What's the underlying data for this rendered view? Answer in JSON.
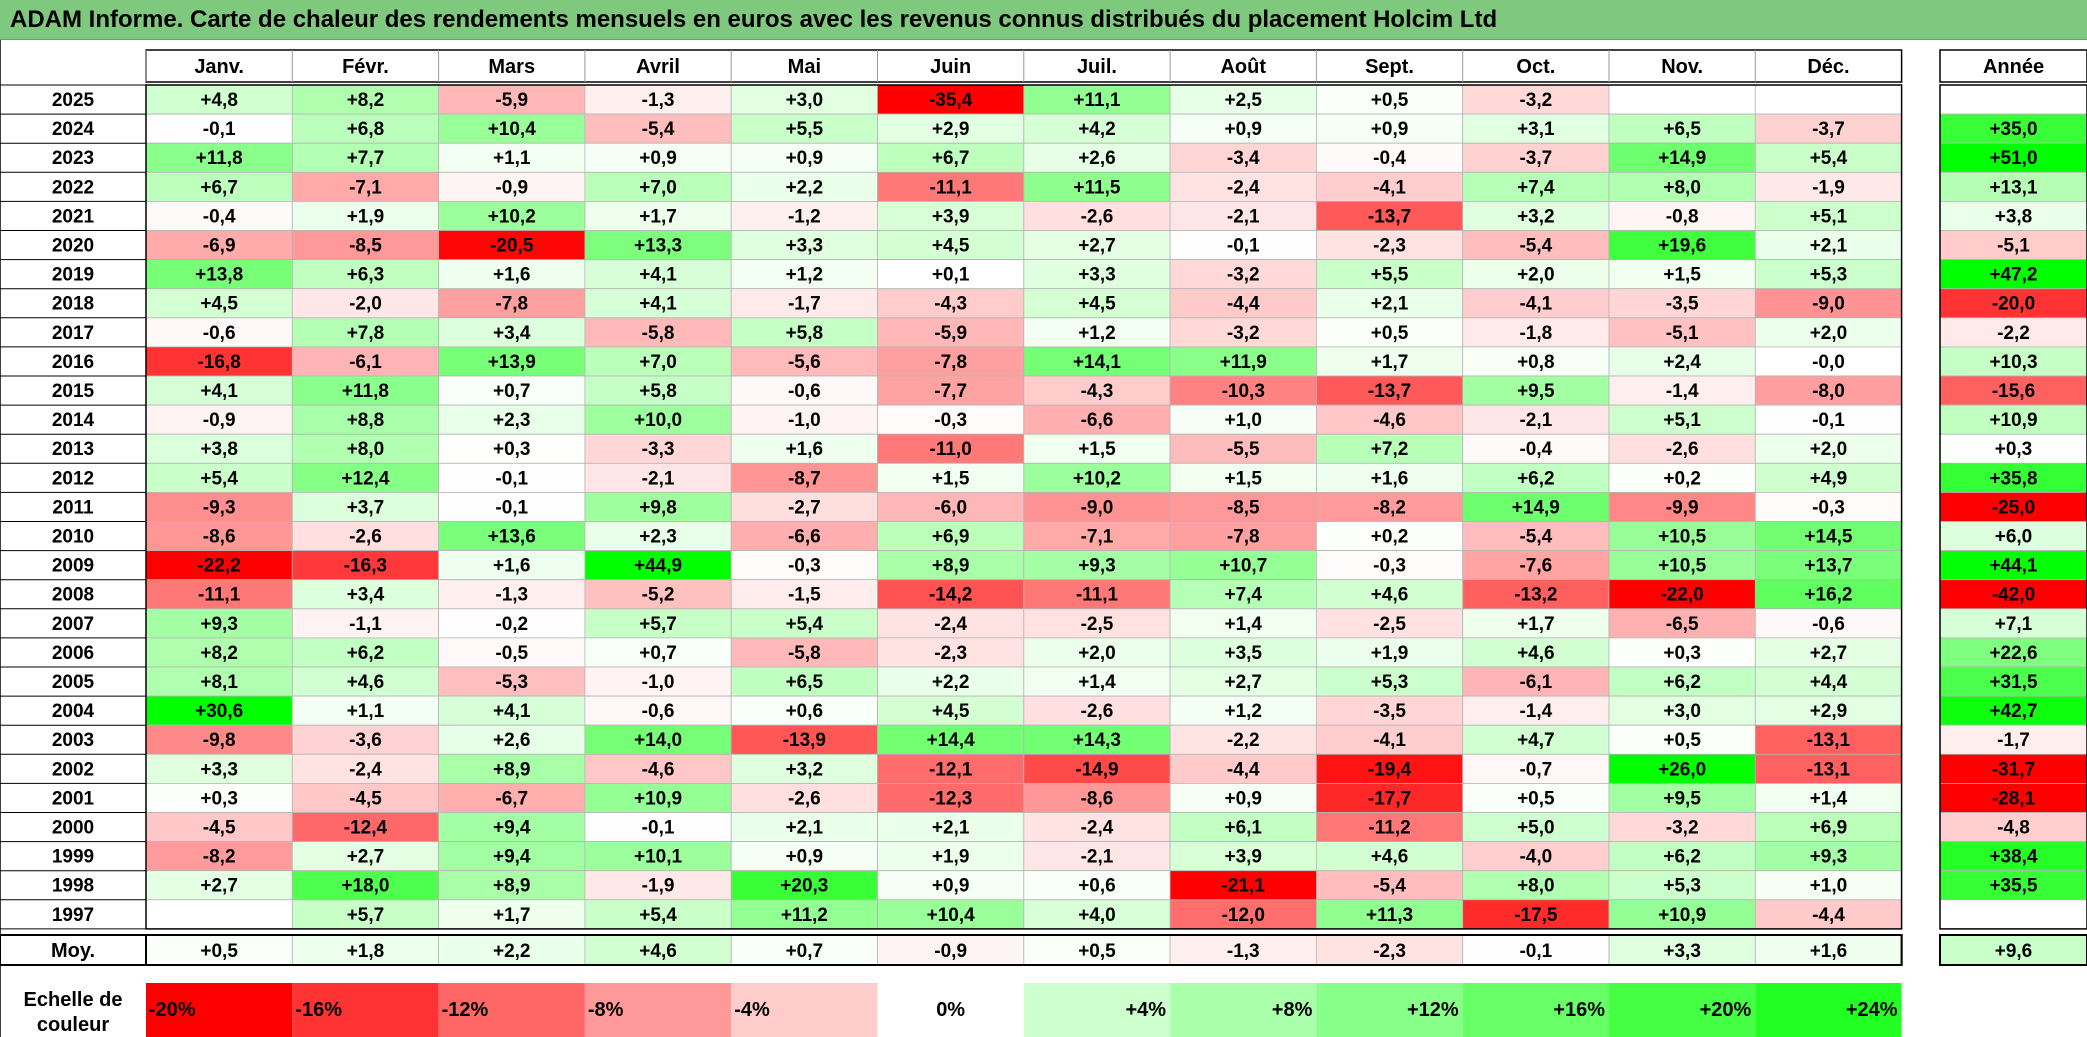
{
  "title": "ADAM Informe. Carte de chaleur des rendements mensuels en euros avec les revenus connus distribués du placement Holcim Ltd",
  "chart_data": {
    "type": "heatmap",
    "title": "ADAM Informe. Carte de chaleur des rendements mensuels en euros avec les revenus connus distribués du placement Holcim Ltd",
    "columns": [
      "Janv.",
      "Févr.",
      "Mars",
      "Avril",
      "Mai",
      "Juin",
      "Juil.",
      "Août",
      "Sept.",
      "Oct.",
      "Nov.",
      "Déc."
    ],
    "year_column_label": "Année",
    "rows": [
      {
        "year": "2025",
        "values": [
          "+4,8",
          "+8,2",
          "-5,9",
          "-1,3",
          "+3,0",
          "-35,4",
          "+11,1",
          "+2,5",
          "+0,5",
          "-3,2",
          "",
          ""
        ],
        "annual": ""
      },
      {
        "year": "2024",
        "values": [
          "-0,1",
          "+6,8",
          "+10,4",
          "-5,4",
          "+5,5",
          "+2,9",
          "+4,2",
          "+0,9",
          "+0,9",
          "+3,1",
          "+6,5",
          "-3,7"
        ],
        "annual": "+35,0"
      },
      {
        "year": "2023",
        "values": [
          "+11,8",
          "+7,7",
          "+1,1",
          "+0,9",
          "+0,9",
          "+6,7",
          "+2,6",
          "-3,4",
          "-0,4",
          "-3,7",
          "+14,9",
          "+5,4"
        ],
        "annual": "+51,0"
      },
      {
        "year": "2022",
        "values": [
          "+6,7",
          "-7,1",
          "-0,9",
          "+7,0",
          "+2,2",
          "-11,1",
          "+11,5",
          "-2,4",
          "-4,1",
          "+7,4",
          "+8,0",
          "-1,9"
        ],
        "annual": "+13,1"
      },
      {
        "year": "2021",
        "values": [
          "-0,4",
          "+1,9",
          "+10,2",
          "+1,7",
          "-1,2",
          "+3,9",
          "-2,6",
          "-2,1",
          "-13,7",
          "+3,2",
          "-0,8",
          "+5,1"
        ],
        "annual": "+3,8"
      },
      {
        "year": "2020",
        "values": [
          "-6,9",
          "-8,5",
          "-20,5",
          "+13,3",
          "+3,3",
          "+4,5",
          "+2,7",
          "-0,1",
          "-2,3",
          "-5,4",
          "+19,6",
          "+2,1"
        ],
        "annual": "-5,1"
      },
      {
        "year": "2019",
        "values": [
          "+13,8",
          "+6,3",
          "+1,6",
          "+4,1",
          "+1,2",
          "+0,1",
          "+3,3",
          "-3,2",
          "+5,5",
          "+2,0",
          "+1,5",
          "+5,3"
        ],
        "annual": "+47,2"
      },
      {
        "year": "2018",
        "values": [
          "+4,5",
          "-2,0",
          "-7,8",
          "+4,1",
          "-1,7",
          "-4,3",
          "+4,5",
          "-4,4",
          "+2,1",
          "-4,1",
          "-3,5",
          "-9,0"
        ],
        "annual": "-20,0"
      },
      {
        "year": "2017",
        "values": [
          "-0,6",
          "+7,8",
          "+3,4",
          "-5,8",
          "+5,8",
          "-5,9",
          "+1,2",
          "-3,2",
          "+0,5",
          "-1,8",
          "-5,1",
          "+2,0"
        ],
        "annual": "-2,2"
      },
      {
        "year": "2016",
        "values": [
          "-16,8",
          "-6,1",
          "+13,9",
          "+7,0",
          "-5,6",
          "-7,8",
          "+14,1",
          "+11,9",
          "+1,7",
          "+0,8",
          "+2,4",
          "-0,0"
        ],
        "annual": "+10,3"
      },
      {
        "year": "2015",
        "values": [
          "+4,1",
          "+11,8",
          "+0,7",
          "+5,8",
          "-0,6",
          "-7,7",
          "-4,3",
          "-10,3",
          "-13,7",
          "+9,5",
          "-1,4",
          "-8,0"
        ],
        "annual": "-15,6"
      },
      {
        "year": "2014",
        "values": [
          "-0,9",
          "+8,8",
          "+2,3",
          "+10,0",
          "-1,0",
          "-0,3",
          "-6,6",
          "+1,0",
          "-4,6",
          "-2,1",
          "+5,1",
          "-0,1"
        ],
        "annual": "+10,9"
      },
      {
        "year": "2013",
        "values": [
          "+3,8",
          "+8,0",
          "+0,3",
          "-3,3",
          "+1,6",
          "-11,0",
          "+1,5",
          "-5,5",
          "+7,2",
          "-0,4",
          "-2,6",
          "+2,0"
        ],
        "annual": "+0,3"
      },
      {
        "year": "2012",
        "values": [
          "+5,4",
          "+12,4",
          "-0,1",
          "-2,1",
          "-8,7",
          "+1,5",
          "+10,2",
          "+1,5",
          "+1,6",
          "+6,2",
          "+0,2",
          "+4,9"
        ],
        "annual": "+35,8"
      },
      {
        "year": "2011",
        "values": [
          "-9,3",
          "+3,7",
          "-0,1",
          "+9,8",
          "-2,7",
          "-6,0",
          "-9,0",
          "-8,5",
          "-8,2",
          "+14,9",
          "-9,9",
          "-0,3"
        ],
        "annual": "-25,0"
      },
      {
        "year": "2010",
        "values": [
          "-8,6",
          "-2,6",
          "+13,6",
          "+2,3",
          "-6,6",
          "+6,9",
          "-7,1",
          "-7,8",
          "+0,2",
          "-5,4",
          "+10,5",
          "+14,5"
        ],
        "annual": "+6,0"
      },
      {
        "year": "2009",
        "values": [
          "-22,2",
          "-16,3",
          "+1,6",
          "+44,9",
          "-0,3",
          "+8,9",
          "+9,3",
          "+10,7",
          "-0,3",
          "-7,6",
          "+10,5",
          "+13,7"
        ],
        "annual": "+44,1"
      },
      {
        "year": "2008",
        "values": [
          "-11,1",
          "+3,4",
          "-1,3",
          "-5,2",
          "-1,5",
          "-14,2",
          "-11,1",
          "+7,4",
          "+4,6",
          "-13,2",
          "-22,0",
          "+16,2"
        ],
        "annual": "-42,0"
      },
      {
        "year": "2007",
        "values": [
          "+9,3",
          "-1,1",
          "-0,2",
          "+5,7",
          "+5,4",
          "-2,4",
          "-2,5",
          "+1,4",
          "-2,5",
          "+1,7",
          "-6,5",
          "-0,6"
        ],
        "annual": "+7,1"
      },
      {
        "year": "2006",
        "values": [
          "+8,2",
          "+6,2",
          "-0,5",
          "+0,7",
          "-5,8",
          "-2,3",
          "+2,0",
          "+3,5",
          "+1,9",
          "+4,6",
          "+0,3",
          "+2,7"
        ],
        "annual": "+22,6"
      },
      {
        "year": "2005",
        "values": [
          "+8,1",
          "+4,6",
          "-5,3",
          "-1,0",
          "+6,5",
          "+2,2",
          "+1,4",
          "+2,7",
          "+5,3",
          "-6,1",
          "+6,2",
          "+4,4"
        ],
        "annual": "+31,5"
      },
      {
        "year": "2004",
        "values": [
          "+30,6",
          "+1,1",
          "+4,1",
          "-0,6",
          "+0,6",
          "+4,5",
          "-2,6",
          "+1,2",
          "-3,5",
          "-1,4",
          "+3,0",
          "+2,9"
        ],
        "annual": "+42,7"
      },
      {
        "year": "2003",
        "values": [
          "-9,8",
          "-3,6",
          "+2,6",
          "+14,0",
          "-13,9",
          "+14,4",
          "+14,3",
          "-2,2",
          "-4,1",
          "+4,7",
          "+0,5",
          "-13,1"
        ],
        "annual": "-1,7"
      },
      {
        "year": "2002",
        "values": [
          "+3,3",
          "-2,4",
          "+8,9",
          "-4,6",
          "+3,2",
          "-12,1",
          "-14,9",
          "-4,4",
          "-19,4",
          "-0,7",
          "+26,0",
          "-13,1"
        ],
        "annual": "-31,7"
      },
      {
        "year": "2001",
        "values": [
          "+0,3",
          "-4,5",
          "-6,7",
          "+10,9",
          "-2,6",
          "-12,3",
          "-8,6",
          "+0,9",
          "-17,7",
          "+0,5",
          "+9,5",
          "+1,4"
        ],
        "annual": "-28,1"
      },
      {
        "year": "2000",
        "values": [
          "-4,5",
          "-12,4",
          "+9,4",
          "-0,1",
          "+2,1",
          "+2,1",
          "-2,4",
          "+6,1",
          "-11,2",
          "+5,0",
          "-3,2",
          "+6,9"
        ],
        "annual": "-4,8"
      },
      {
        "year": "1999",
        "values": [
          "-8,2",
          "+2,7",
          "+9,4",
          "+10,1",
          "+0,9",
          "+1,9",
          "-2,1",
          "+3,9",
          "+4,6",
          "-4,0",
          "+6,2",
          "+9,3"
        ],
        "annual": "+38,4"
      },
      {
        "year": "1998",
        "values": [
          "+2,7",
          "+18,0",
          "+8,9",
          "-1,9",
          "+20,3",
          "+0,9",
          "+0,6",
          "-21,1",
          "-5,4",
          "+8,0",
          "+5,3",
          "+1,0"
        ],
        "annual": "+35,5"
      },
      {
        "year": "1997",
        "values": [
          "",
          "+5,7",
          "+1,7",
          "+5,4",
          "+11,2",
          "+10,4",
          "+4,0",
          "-12,0",
          "+11,3",
          "-17,5",
          "+10,9",
          "-4,4"
        ],
        "annual": ""
      }
    ],
    "average": {
      "label": "Moy.",
      "values": [
        "+0,5",
        "+1,8",
        "+2,2",
        "+4,6",
        "+0,7",
        "-0,9",
        "+0,5",
        "-1,3",
        "-2,3",
        "-0,1",
        "+3,3",
        "+1,6"
      ],
      "annual": "+9,6"
    },
    "color_scale": {
      "label_line1": "Echelle de",
      "label_line2": "couleur",
      "stops": [
        {
          "label": "-20%",
          "value": -20,
          "color": "#ff0000"
        },
        {
          "label": "-16%",
          "value": -16,
          "color": "#ff3333"
        },
        {
          "label": "-12%",
          "value": -12,
          "color": "#ff6666"
        },
        {
          "label": "-8%",
          "value": -8,
          "color": "#ff9999"
        },
        {
          "label": "-4%",
          "value": -4,
          "color": "#ffcccc"
        },
        {
          "label": "0%",
          "value": 0,
          "color": "#ffffff"
        },
        {
          "label": "+4%",
          "value": 4,
          "color": "#ccffcc"
        },
        {
          "label": "+8%",
          "value": 8,
          "color": "#aaffaa"
        },
        {
          "label": "+12%",
          "value": 12,
          "color": "#88ff88"
        },
        {
          "label": "+16%",
          "value": 16,
          "color": "#66ff66"
        },
        {
          "label": "+20%",
          "value": 20,
          "color": "#44ff44"
        },
        {
          "label": "+24%",
          "value": 24,
          "color": "#22ff22"
        }
      ]
    }
  }
}
